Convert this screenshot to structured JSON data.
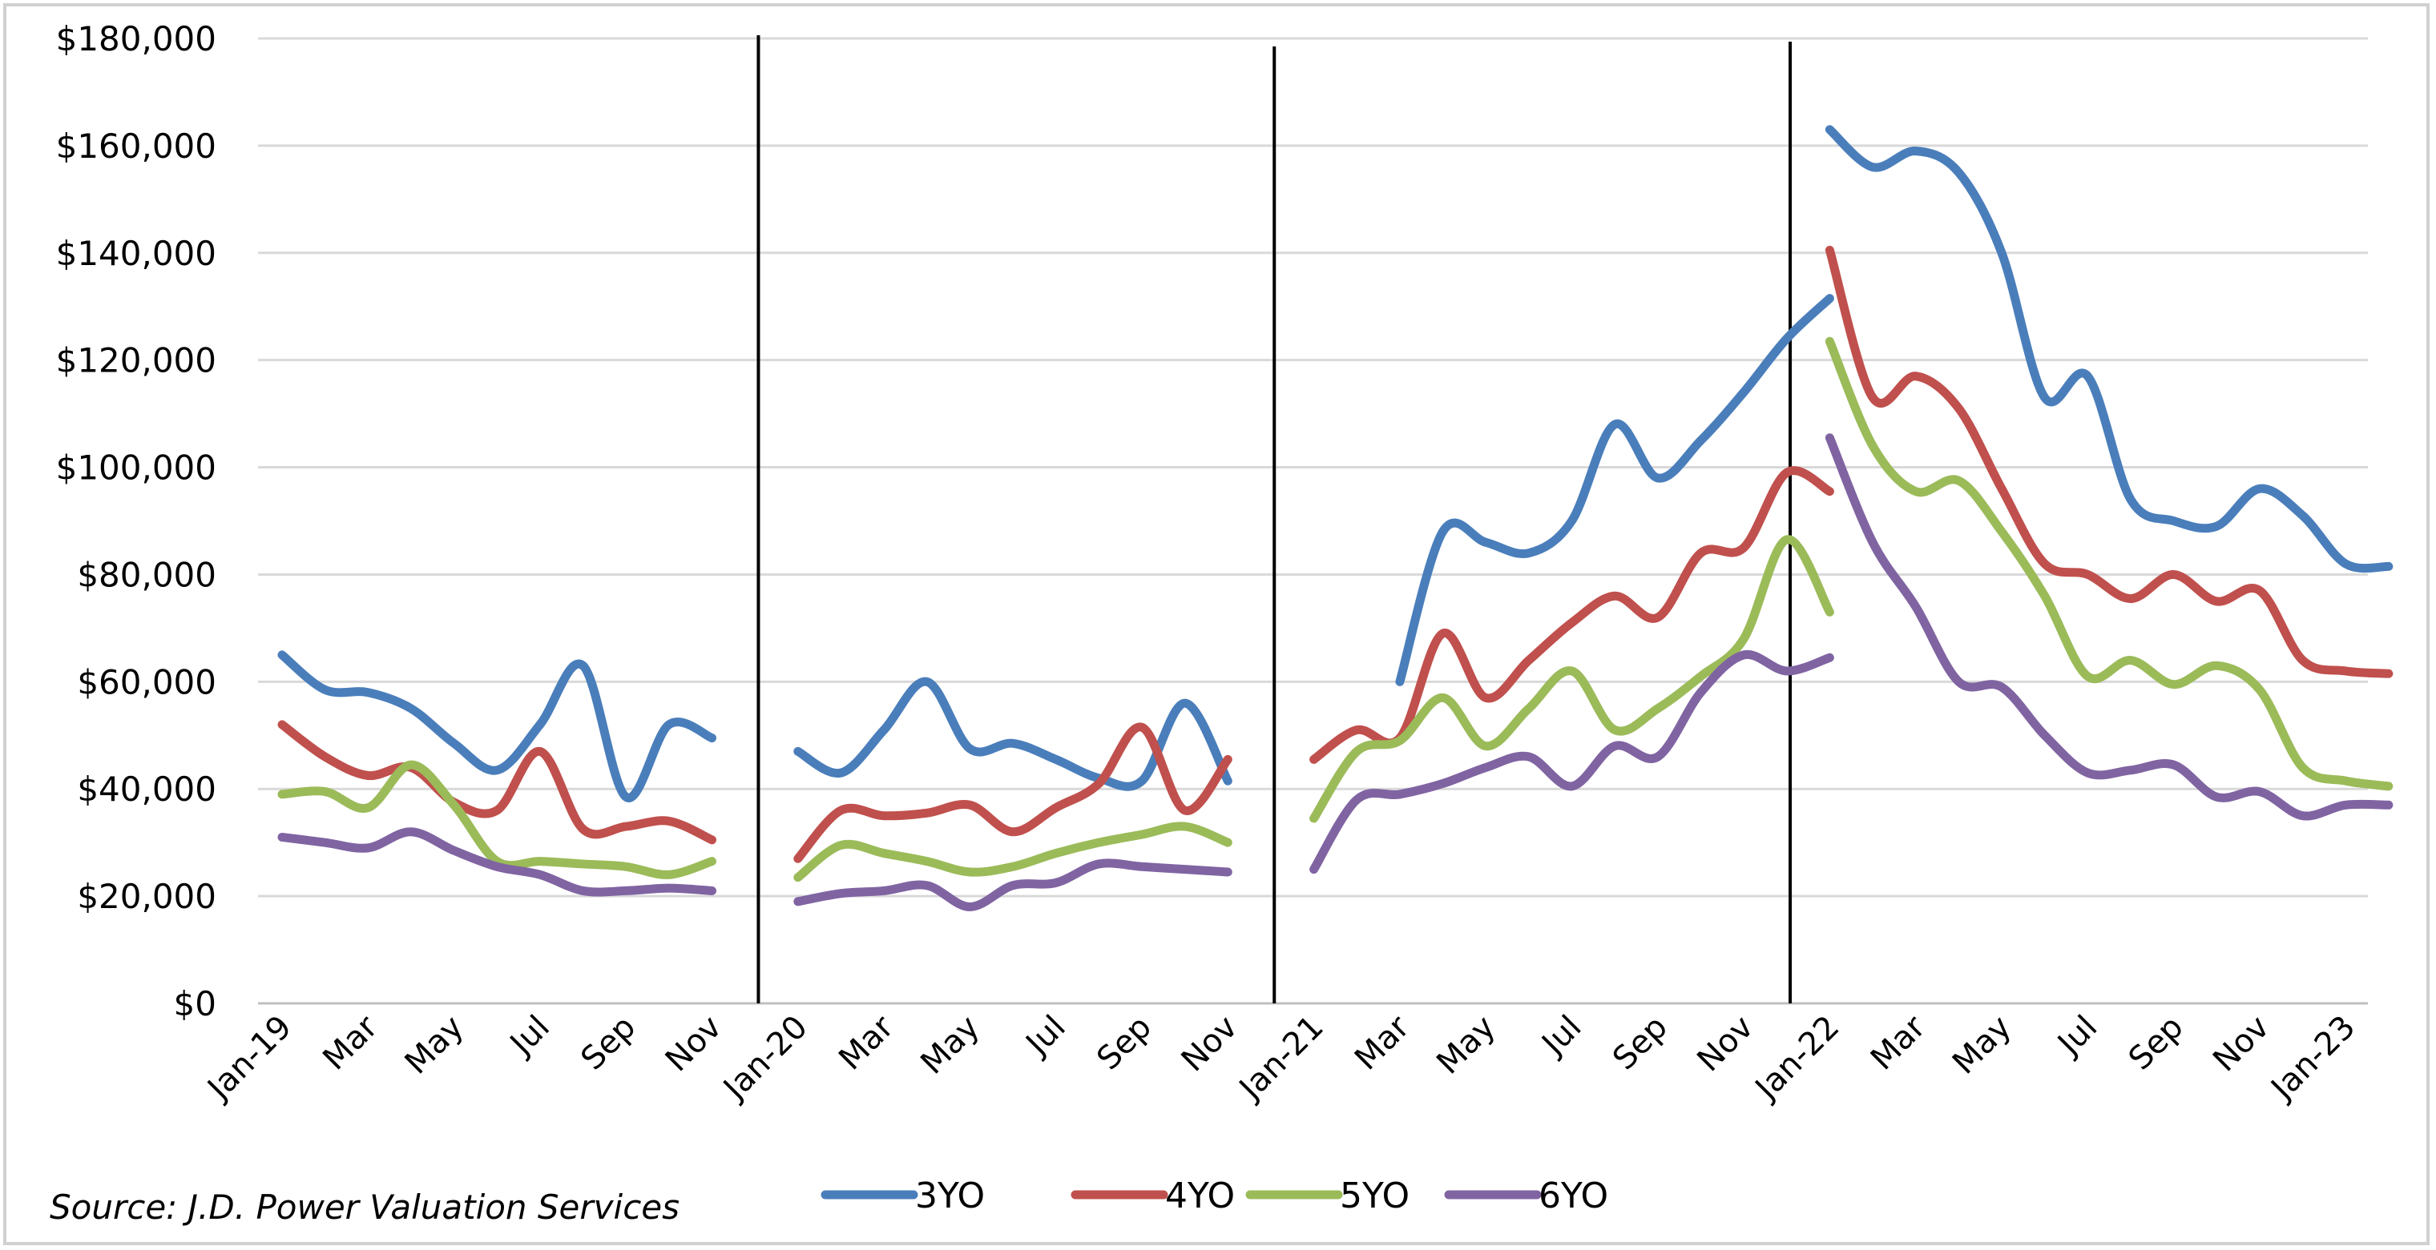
{
  "chart_data": {
    "type": "line",
    "title": "",
    "xlabel": "",
    "ylabel": "",
    "ylim": [
      0,
      180000
    ],
    "y_ticks": [
      0,
      20000,
      40000,
      60000,
      80000,
      100000,
      120000,
      140000,
      160000,
      180000
    ],
    "y_tick_labels": [
      "$0",
      "$20,000",
      "$40,000",
      "$60,000",
      "$80,000",
      "$100,000",
      "$120,000",
      "$140,000",
      "$160,000",
      "$180,000"
    ],
    "grid": true,
    "legend_position": "bottom",
    "x_tick_labels": [
      {
        "label": "Jan-19",
        "x": "2019-01"
      },
      {
        "label": "Mar",
        "x": "2019-03"
      },
      {
        "label": "May",
        "x": "2019-05"
      },
      {
        "label": "Jul",
        "x": "2019-07"
      },
      {
        "label": "Sep",
        "x": "2019-09"
      },
      {
        "label": "Nov",
        "x": "2019-11"
      },
      {
        "label": "Jan-20",
        "x": "2020-01"
      },
      {
        "label": "Mar",
        "x": "2020-03"
      },
      {
        "label": "May",
        "x": "2020-05"
      },
      {
        "label": "Jul",
        "x": "2020-07"
      },
      {
        "label": "Sep",
        "x": "2020-09"
      },
      {
        "label": "Nov",
        "x": "2020-11"
      },
      {
        "label": "Jan-21",
        "x": "2021-01"
      },
      {
        "label": "Mar",
        "x": "2021-03"
      },
      {
        "label": "May",
        "x": "2021-05"
      },
      {
        "label": "Jul",
        "x": "2021-07"
      },
      {
        "label": "Sep",
        "x": "2021-09"
      },
      {
        "label": "Nov",
        "x": "2021-11"
      },
      {
        "label": "Jan-22",
        "x": "2022-01"
      },
      {
        "label": "Mar",
        "x": "2022-03"
      },
      {
        "label": "May",
        "x": "2022-05"
      },
      {
        "label": "Jul",
        "x": "2022-07"
      },
      {
        "label": "Sep",
        "x": "2022-09"
      },
      {
        "label": "Nov",
        "x": "2022-11"
      },
      {
        "label": "Jan-23",
        "x": "2023-01"
      }
    ],
    "year_dividers": [
      "2019-12",
      "2020-12",
      "2021-12"
    ],
    "series": [
      {
        "name": "3YO",
        "color": "#4a7ebb",
        "segments": [
          {
            "x": [
              "2019-01",
              "2019-02",
              "2019-03",
              "2019-04",
              "2019-05",
              "2019-06",
              "2019-07",
              "2019-08",
              "2019-09",
              "2019-10",
              "2019-11"
            ],
            "y": [
              65000,
              58500,
              58000,
              55000,
              48500,
              43500,
              52000,
              63000,
              38500,
              52000,
              49500
            ]
          },
          {
            "x": [
              "2020-01",
              "2020-02",
              "2020-03",
              "2020-04",
              "2020-05",
              "2020-06",
              "2020-07",
              "2020-08",
              "2020-09",
              "2020-10",
              "2020-11"
            ],
            "y": [
              47000,
              43000,
              51000,
              60000,
              47500,
              48500,
              45500,
              42000,
              41500,
              56000,
              41500
            ]
          },
          {
            "x": [
              "2021-03",
              "2021-04",
              "2021-05",
              "2021-06",
              "2021-07",
              "2021-08",
              "2021-09",
              "2021-10",
              "2021-11",
              "2021-12",
              "2022-01"
            ],
            "y": [
              60000,
              88000,
              86000,
              84000,
              90000,
              108000,
              98000,
              105000,
              114000,
              124000,
              131500
            ]
          },
          {
            "x": [
              "2022-01",
              "2022-02",
              "2022-03",
              "2022-04",
              "2022-05",
              "2022-06",
              "2022-07",
              "2022-08",
              "2022-09",
              "2022-10",
              "2022-11",
              "2022-12",
              "2023-01",
              "2023-02"
            ],
            "y": [
              163000,
              156000,
              159000,
              155000,
              140000,
              113000,
              117000,
              94000,
              90000,
              89000,
              96000,
              91000,
              82000,
              81500
            ]
          }
        ]
      },
      {
        "name": "4YO",
        "color": "#c0504d",
        "segments": [
          {
            "x": [
              "2019-01",
              "2019-02",
              "2019-03",
              "2019-04",
              "2019-05",
              "2019-06",
              "2019-07",
              "2019-08",
              "2019-09",
              "2019-10",
              "2019-11"
            ],
            "y": [
              52000,
              46000,
              42500,
              44000,
              37500,
              36000,
              47000,
              32500,
              33000,
              34000,
              30500
            ]
          },
          {
            "x": [
              "2020-01",
              "2020-02",
              "2020-03",
              "2020-04",
              "2020-05",
              "2020-06",
              "2020-07",
              "2020-08",
              "2020-09",
              "2020-10",
              "2020-11"
            ],
            "y": [
              27000,
              36000,
              35000,
              35500,
              37000,
              32000,
              36500,
              41000,
              51500,
              36000,
              45500
            ]
          },
          {
            "x": [
              "2021-01",
              "2021-02",
              "2021-03",
              "2021-04",
              "2021-05",
              "2021-06",
              "2021-07",
              "2021-08",
              "2021-09",
              "2021-10",
              "2021-11",
              "2021-12",
              "2022-01"
            ],
            "y": [
              45500,
              51000,
              49500,
              69000,
              57000,
              64000,
              71000,
              76000,
              72000,
              84000,
              85000,
              99000,
              95500
            ]
          },
          {
            "x": [
              "2022-01",
              "2022-02",
              "2022-03",
              "2022-04",
              "2022-05",
              "2022-06",
              "2022-07",
              "2022-08",
              "2022-09",
              "2022-10",
              "2022-11",
              "2022-12",
              "2023-01",
              "2023-02"
            ],
            "y": [
              140500,
              113000,
              117000,
              111000,
              96000,
              82000,
              80000,
              75500,
              80000,
              75000,
              77000,
              64000,
              62000,
              61500
            ]
          }
        ]
      },
      {
        "name": "5YO",
        "color": "#9bbb59",
        "segments": [
          {
            "x": [
              "2019-01",
              "2019-02",
              "2019-03",
              "2019-04",
              "2019-05",
              "2019-06",
              "2019-07",
              "2019-08",
              "2019-09",
              "2019-10",
              "2019-11"
            ],
            "y": [
              39000,
              39500,
              36500,
              44500,
              37000,
              26500,
              26500,
              26000,
              25500,
              24000,
              26500
            ]
          },
          {
            "x": [
              "2020-01",
              "2020-02",
              "2020-03",
              "2020-04",
              "2020-05",
              "2020-06",
              "2020-07",
              "2020-08",
              "2020-09",
              "2020-10",
              "2020-11"
            ],
            "y": [
              23500,
              29500,
              28000,
              26500,
              24500,
              25500,
              28000,
              30000,
              31500,
              33000,
              30000
            ]
          },
          {
            "x": [
              "2021-01",
              "2021-02",
              "2021-03",
              "2021-04",
              "2021-05",
              "2021-06",
              "2021-07",
              "2021-08",
              "2021-09",
              "2021-10",
              "2021-11",
              "2021-12",
              "2022-01"
            ],
            "y": [
              34500,
              47000,
              49000,
              57000,
              48000,
              55000,
              62000,
              51000,
              55000,
              61000,
              68000,
              86500,
              73000
            ]
          },
          {
            "x": [
              "2022-01",
              "2022-02",
              "2022-03",
              "2022-04",
              "2022-05",
              "2022-06",
              "2022-07",
              "2022-08",
              "2022-09",
              "2022-10",
              "2022-11",
              "2022-12",
              "2023-01",
              "2023-02"
            ],
            "y": [
              123500,
              104000,
              95500,
              97500,
              88000,
              76000,
              61000,
              64000,
              59500,
              63000,
              58500,
              44000,
              41500,
              40500
            ]
          }
        ]
      },
      {
        "name": "6YO",
        "color": "#8064a2",
        "segments": [
          {
            "x": [
              "2019-01",
              "2019-02",
              "2019-03",
              "2019-04",
              "2019-05",
              "2019-06",
              "2019-07",
              "2019-08",
              "2019-09",
              "2019-10",
              "2019-11"
            ],
            "y": [
              31000,
              30000,
              29000,
              32000,
              28500,
              25500,
              24000,
              21000,
              21000,
              21500,
              21000
            ]
          },
          {
            "x": [
              "2020-01",
              "2020-02",
              "2020-03",
              "2020-04",
              "2020-05",
              "2020-06",
              "2020-07",
              "2020-08",
              "2020-09",
              "2020-10",
              "2020-11"
            ],
            "y": [
              19000,
              20500,
              21000,
              22000,
              18000,
              22000,
              22500,
              26000,
              25500,
              25000,
              24500
            ]
          },
          {
            "x": [
              "2021-01",
              "2021-02",
              "2021-03",
              "2021-04",
              "2021-05",
              "2021-06",
              "2021-07",
              "2021-08",
              "2021-09",
              "2021-10",
              "2021-11",
              "2021-12",
              "2022-01"
            ],
            "y": [
              25000,
              38000,
              39000,
              41000,
              44000,
              46000,
              40500,
              48000,
              46000,
              58000,
              65000,
              62000,
              64500
            ]
          },
          {
            "x": [
              "2022-01",
              "2022-02",
              "2022-03",
              "2022-04",
              "2022-05",
              "2022-06",
              "2022-07",
              "2022-08",
              "2022-09",
              "2022-10",
              "2022-11",
              "2022-12",
              "2023-01",
              "2023-02"
            ],
            "y": [
              105500,
              86000,
              74000,
              60000,
              59000,
              50000,
              43000,
              43500,
              44500,
              38500,
              39500,
              35000,
              37000,
              37000
            ]
          }
        ]
      }
    ]
  },
  "source_text": "Source: J.D. Power Valuation Services"
}
